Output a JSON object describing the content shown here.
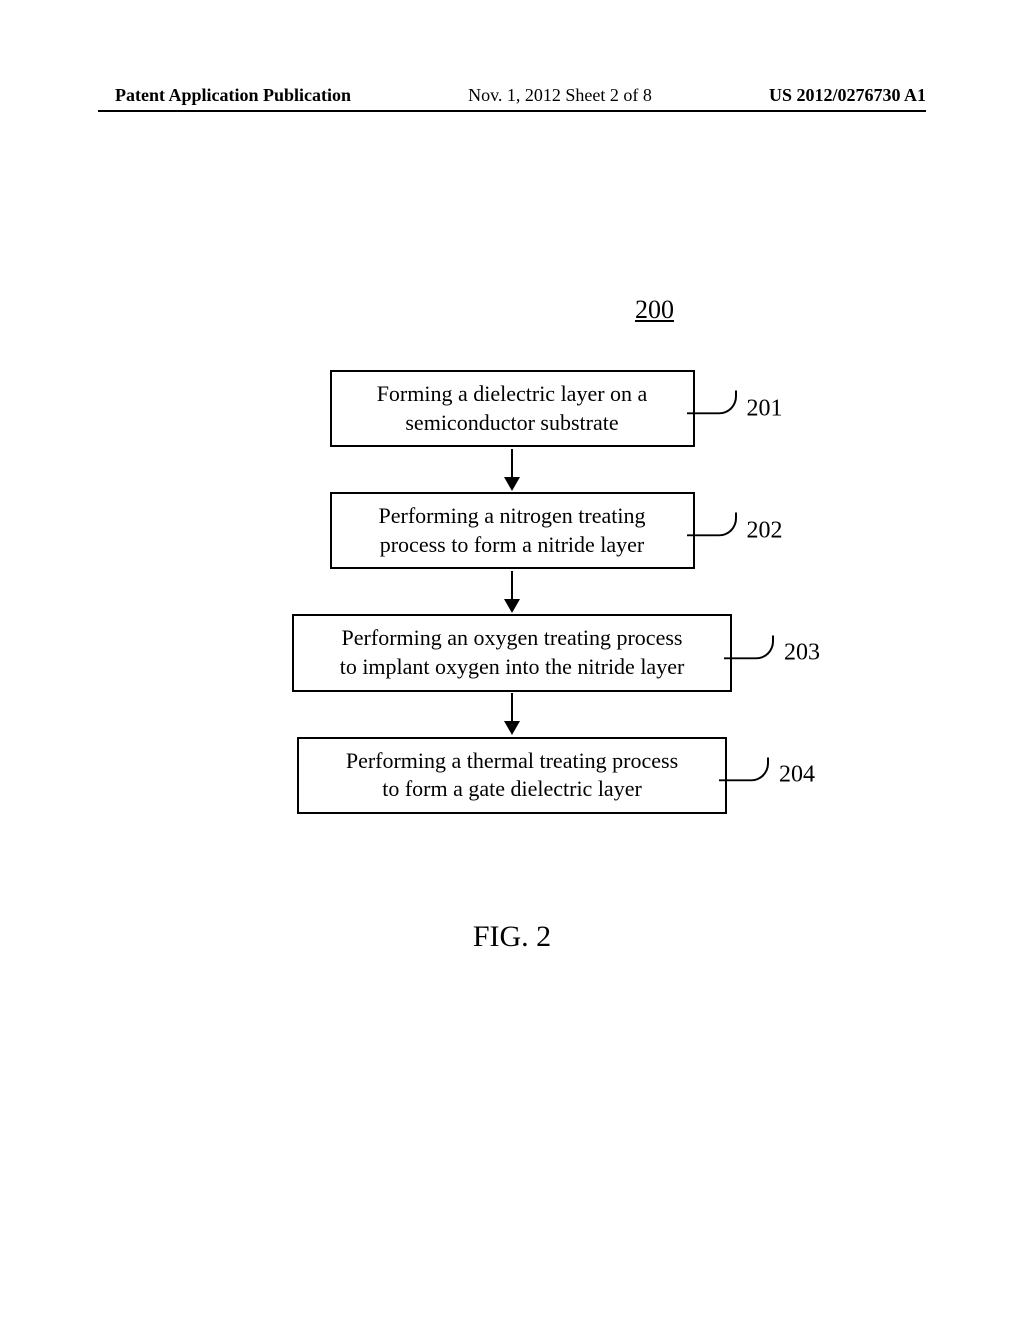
{
  "header": {
    "left": "Patent Application Publication",
    "center": "Nov. 1, 2012   Sheet 2 of 8",
    "right": "US 2012/0276730 A1"
  },
  "flowchart": {
    "ref_number": "200",
    "steps": [
      {
        "text_line1": "Forming a dielectric layer on a",
        "text_line2": "semiconductor substrate",
        "label": "201"
      },
      {
        "text_line1": "Performing a nitrogen treating",
        "text_line2": "process to form a nitride layer",
        "label": "202"
      },
      {
        "text_line1": "Performing an oxygen treating process",
        "text_line2": "to implant oxygen into the nitride layer",
        "label": "203"
      },
      {
        "text_line1": "Performing a thermal treating process",
        "text_line2": "to form a gate dielectric layer",
        "label": "204"
      }
    ]
  },
  "figure_label": "FIG. 2",
  "styling": {
    "background_color": "#ffffff",
    "border_color": "#000000",
    "text_color": "#000000",
    "box_font_size": 22,
    "label_font_size": 24,
    "figure_font_size": 30,
    "header_font_size": 18,
    "ref_font_size": 26,
    "border_width": 2
  }
}
